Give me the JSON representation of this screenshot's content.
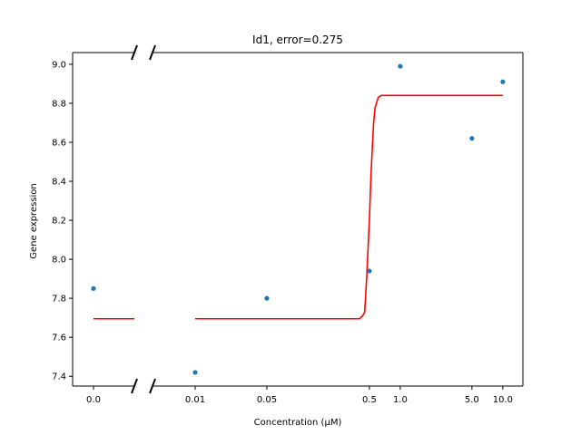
{
  "chart_data": {
    "type": "scatter",
    "title": "Id1, error=0.275",
    "xlabel": "Concentration (μM)",
    "ylabel": "Gene expression",
    "x_scale": "log with broken axis at zero",
    "x_ticks": [
      0.0,
      0.01,
      0.05,
      0.5,
      1.0,
      5.0,
      10.0
    ],
    "x_tick_labels": [
      "0.0",
      "0.01",
      "0.05",
      "0.5",
      "1.0",
      "5.0",
      "10.0"
    ],
    "y_ticks": [
      7.4,
      7.6,
      7.8,
      8.0,
      8.2,
      8.4,
      8.6,
      8.8,
      9.0
    ],
    "y_tick_labels": [
      "7.4",
      "7.6",
      "7.8",
      "8.0",
      "8.2",
      "8.4",
      "8.6",
      "8.8",
      "9.0"
    ],
    "ylim": [
      7.35,
      9.06
    ],
    "grid": false,
    "series": [
      {
        "kind": "scatter",
        "color": "#1f77b4",
        "points": [
          {
            "x": 0.0,
            "y": 7.85
          },
          {
            "x": 0.01,
            "y": 7.42
          },
          {
            "x": 0.05,
            "y": 7.8
          },
          {
            "x": 0.5,
            "y": 7.94
          },
          {
            "x": 1.0,
            "y": 8.99
          },
          {
            "x": 5.0,
            "y": 8.62
          },
          {
            "x": 10.0,
            "y": 8.91
          }
        ]
      },
      {
        "kind": "line",
        "color": "#ff0000",
        "zero_segment": {
          "y": 7.695
        },
        "points": [
          {
            "x": 0.01,
            "y": 7.695
          },
          {
            "x": 0.4,
            "y": 7.695
          },
          {
            "x": 0.43,
            "y": 7.71
          },
          {
            "x": 0.45,
            "y": 7.73
          },
          {
            "x": 0.47,
            "y": 7.9
          },
          {
            "x": 0.5,
            "y": 8.2
          },
          {
            "x": 0.52,
            "y": 8.45
          },
          {
            "x": 0.55,
            "y": 8.7
          },
          {
            "x": 0.57,
            "y": 8.78
          },
          {
            "x": 0.61,
            "y": 8.83
          },
          {
            "x": 0.65,
            "y": 8.84
          },
          {
            "x": 10.0,
            "y": 8.84
          }
        ]
      }
    ]
  }
}
